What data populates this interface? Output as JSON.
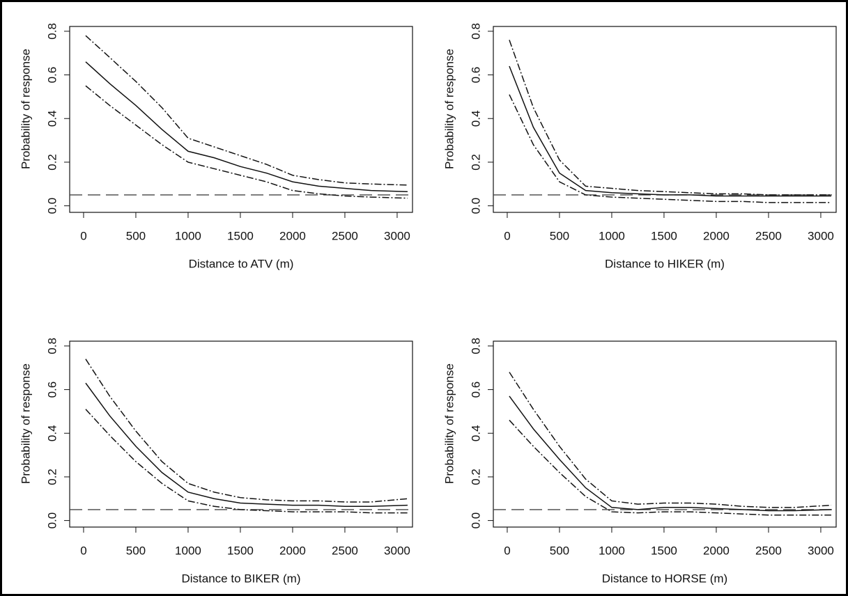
{
  "chart_data": [
    {
      "type": "line",
      "xlabel": "Distance to ATV (m)",
      "ylabel": "Probability of response",
      "x": [
        20,
        250,
        500,
        750,
        1000,
        1250,
        1500,
        1750,
        2000,
        2250,
        2500,
        2750,
        3100
      ],
      "series": [
        {
          "color": "#111111",
          "style": "solid",
          "values": [
            0.66,
            0.56,
            0.46,
            0.35,
            0.25,
            0.22,
            0.18,
            0.15,
            0.11,
            0.09,
            0.08,
            0.07,
            0.065
          ]
        },
        {
          "color": "#111111",
          "style": "dashdot",
          "values": [
            0.78,
            0.68,
            0.57,
            0.45,
            0.31,
            0.27,
            0.23,
            0.19,
            0.14,
            0.12,
            0.105,
            0.1,
            0.095
          ]
        },
        {
          "color": "#111111",
          "style": "dashdot",
          "values": [
            0.55,
            0.46,
            0.37,
            0.28,
            0.2,
            0.17,
            0.14,
            0.11,
            0.07,
            0.055,
            0.045,
            0.04,
            0.035
          ]
        }
      ],
      "hline": 0.05,
      "hline_style": "dashed",
      "xlim": [
        -133,
        3147
      ],
      "xticks": [
        0,
        500,
        1000,
        1500,
        2000,
        2500,
        3000
      ],
      "ylim": [
        -0.03,
        0.822
      ],
      "yticks": [
        {
          "value": 0,
          "label": "0.0"
        },
        0.2,
        0.4,
        0.6,
        0.8
      ]
    },
    {
      "type": "line",
      "xlabel": "Distance to HIKER (m)",
      "ylabel": "Probability of response",
      "x": [
        20,
        250,
        500,
        750,
        1000,
        1250,
        1500,
        1750,
        2000,
        2250,
        2500,
        2750,
        3100
      ],
      "series": [
        {
          "color": "#111111",
          "style": "solid",
          "values": [
            0.64,
            0.36,
            0.15,
            0.07,
            0.06,
            0.055,
            0.05,
            0.05,
            0.045,
            0.045,
            0.045,
            0.045,
            0.045
          ]
        },
        {
          "color": "#111111",
          "style": "dashdot",
          "values": [
            0.76,
            0.45,
            0.21,
            0.09,
            0.08,
            0.07,
            0.065,
            0.06,
            0.055,
            0.055,
            0.05,
            0.05,
            0.05
          ]
        },
        {
          "color": "#111111",
          "style": "dashdot",
          "values": [
            0.51,
            0.28,
            0.11,
            0.05,
            0.04,
            0.035,
            0.03,
            0.025,
            0.02,
            0.02,
            0.015,
            0.015,
            0.015
          ]
        }
      ],
      "hline": 0.05,
      "hline_style": "dashed",
      "xlim": [
        -133,
        3147
      ],
      "xticks": [
        0,
        500,
        1000,
        1500,
        2000,
        2500,
        3000
      ],
      "ylim": [
        -0.03,
        0.822
      ],
      "yticks": [
        {
          "value": 0,
          "label": "0.0"
        },
        0.2,
        0.4,
        0.6,
        0.8
      ]
    },
    {
      "type": "line",
      "xlabel": "Distance to BIKER (m)",
      "ylabel": "Probability of response",
      "x": [
        20,
        250,
        500,
        750,
        1000,
        1250,
        1500,
        1750,
        2000,
        2250,
        2500,
        2750,
        3100
      ],
      "series": [
        {
          "color": "#111111",
          "style": "solid",
          "values": [
            0.63,
            0.48,
            0.34,
            0.22,
            0.13,
            0.1,
            0.08,
            0.075,
            0.07,
            0.07,
            0.065,
            0.065,
            0.07
          ]
        },
        {
          "color": "#111111",
          "style": "dashdot",
          "values": [
            0.74,
            0.57,
            0.41,
            0.27,
            0.17,
            0.13,
            0.105,
            0.095,
            0.09,
            0.09,
            0.085,
            0.085,
            0.1
          ]
        },
        {
          "color": "#111111",
          "style": "dashdot",
          "values": [
            0.51,
            0.39,
            0.27,
            0.17,
            0.09,
            0.065,
            0.05,
            0.045,
            0.04,
            0.04,
            0.04,
            0.035,
            0.035
          ]
        }
      ],
      "hline": 0.05,
      "hline_style": "dashed",
      "xlim": [
        -133,
        3147
      ],
      "xticks": [
        0,
        500,
        1000,
        1500,
        2000,
        2500,
        3000
      ],
      "ylim": [
        -0.03,
        0.822
      ],
      "yticks": [
        {
          "value": 0,
          "label": "0.0"
        },
        0.2,
        0.4,
        0.6,
        0.8
      ]
    },
    {
      "type": "line",
      "xlabel": "Distance to HORSE (m)",
      "ylabel": "Probability of response",
      "x": [
        20,
        250,
        500,
        750,
        1000,
        1250,
        1500,
        1750,
        2000,
        2250,
        2500,
        2750,
        3100
      ],
      "series": [
        {
          "color": "#111111",
          "style": "solid",
          "values": [
            0.57,
            0.42,
            0.28,
            0.15,
            0.06,
            0.05,
            0.06,
            0.06,
            0.055,
            0.05,
            0.045,
            0.045,
            0.05
          ]
        },
        {
          "color": "#111111",
          "style": "dashdot",
          "values": [
            0.68,
            0.51,
            0.34,
            0.19,
            0.09,
            0.075,
            0.08,
            0.08,
            0.075,
            0.065,
            0.06,
            0.06,
            0.07
          ]
        },
        {
          "color": "#111111",
          "style": "dashdot",
          "values": [
            0.46,
            0.34,
            0.22,
            0.11,
            0.04,
            0.035,
            0.04,
            0.04,
            0.035,
            0.03,
            0.025,
            0.025,
            0.025
          ]
        }
      ],
      "hline": 0.05,
      "hline_style": "dashed",
      "xlim": [
        -133,
        3147
      ],
      "xticks": [
        0,
        500,
        1000,
        1500,
        2000,
        2500,
        3000
      ],
      "ylim": [
        -0.03,
        0.822
      ],
      "yticks": [
        {
          "value": 0,
          "label": "0.0"
        },
        0.2,
        0.4,
        0.6,
        0.8
      ]
    }
  ]
}
